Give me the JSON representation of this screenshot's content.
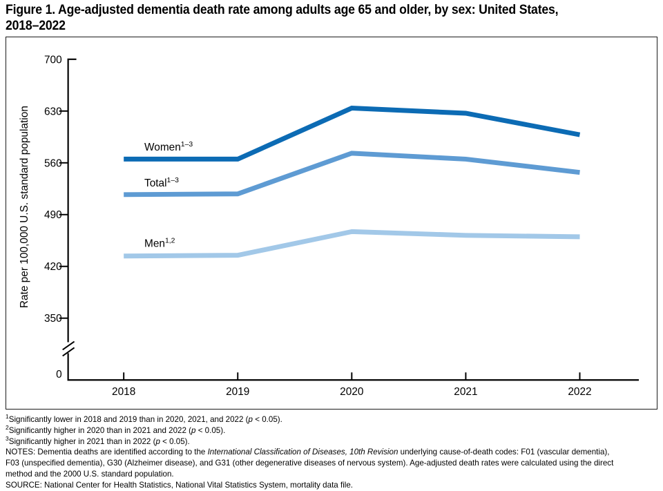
{
  "title": {
    "line1": "Figure 1. Age-adjusted dementia death rate among adults age 65 and older, by sex: United States,",
    "line2": "2018–2022"
  },
  "chart_data": {
    "type": "line",
    "x": [
      2018,
      2019,
      2020,
      2021,
      2022
    ],
    "series": [
      {
        "name": "Women",
        "sup": "1–3",
        "values": [
          565,
          565,
          634,
          627,
          598
        ],
        "color": "#0c6bb4",
        "label_pos": [
          200,
          165
        ]
      },
      {
        "name": "Total",
        "sup": "1–3",
        "values": [
          517,
          518,
          573,
          565,
          547
        ],
        "color": "#5e9bd3",
        "label_pos": [
          200,
          217
        ]
      },
      {
        "name": "Men",
        "sup": "1,2",
        "values": [
          434,
          435,
          467,
          462,
          460
        ],
        "color": "#a2c8e8",
        "label_pos": [
          200,
          305
        ]
      }
    ],
    "ylabel": "Rate per 100,000 U.S. standard population",
    "xlabel": "",
    "yticks": [
      0,
      350,
      420,
      490,
      560,
      630,
      700
    ],
    "ylim": [
      0,
      700
    ],
    "axis_break": true,
    "grid": false,
    "legend_position": "inline-labels"
  },
  "footnotes": {
    "lines": [
      [
        {
          "sup": "1"
        },
        {
          "t": "Significantly lower in 2018 and 2019 than in 2020, 2021, and 2022 ("
        },
        {
          "i": "p"
        },
        {
          "t": " < 0.05)."
        }
      ],
      [
        {
          "sup": "2"
        },
        {
          "t": "Significantly higher in 2020 than in 2021 and 2022 ("
        },
        {
          "i": "p"
        },
        {
          "t": " < 0.05)."
        }
      ],
      [
        {
          "sup": "3"
        },
        {
          "t": "Significantly higher in 2021 than in 2022 ("
        },
        {
          "i": "p"
        },
        {
          "t": " < 0.05)."
        }
      ],
      [
        {
          "t": "NOTES: Dementia deaths are identified according to the "
        },
        {
          "i": "International Classification of Diseases, 10th Revision"
        },
        {
          "t": " underlying cause-of-death codes: F01 (vascular dementia),"
        }
      ],
      [
        {
          "t": "F03 (unspecified dementia), G30 (Alzheimer disease), and G31 (other degenerative diseases of nervous system). Age-adjusted death rates were calculated using the direct"
        }
      ],
      [
        {
          "t": "method and the 2000 U.S. standard population."
        }
      ],
      [
        {
          "t": "SOURCE: National Center for Health Statistics, National Vital Statistics System, mortality data file."
        }
      ]
    ]
  }
}
